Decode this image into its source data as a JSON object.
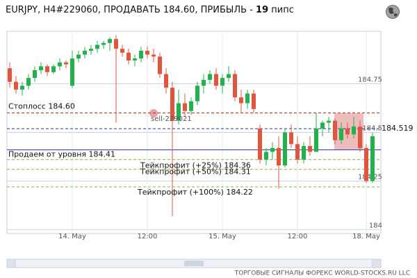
{
  "chart_data": {
    "type": "candlestick",
    "title": "EURJPY, H4#229060, ПРОДАВАТЬ 184.60, ПРИБЫЛЬ -",
    "profit": 19,
    "profit_unit": "пипс",
    "categories": [
      null,
      null,
      null,
      null,
      null,
      null,
      null,
      null,
      null,
      null,
      "14. May",
      null,
      null,
      null,
      null,
      null,
      null,
      null,
      null,
      null,
      null,
      null,
      "12:00",
      null,
      null,
      null,
      null,
      null,
      null,
      null,
      null,
      null,
      null,
      null,
      "15. May",
      null,
      null,
      null,
      null,
      null,
      null,
      null,
      null,
      null,
      null,
      null,
      "12:00",
      null,
      null,
      null,
      null,
      null,
      null,
      null,
      null,
      null,
      null,
      "18. May",
      null
    ],
    "open": [
      184.83,
      184.76,
      184.72,
      184.74,
      184.78,
      184.82,
      184.84,
      184.81,
      184.84,
      184.86,
      184.74,
      184.88,
      184.9,
      184.92,
      184.93,
      184.95,
      184.96,
      184.98,
      184.93,
      184.91,
      184.87,
      184.88,
      184.92,
      184.9,
      184.89,
      184.8,
      184.73,
      184.56,
      184.65,
      184.61,
      184.66,
      184.74,
      184.77,
      184.8,
      184.74,
      184.78,
      184.8,
      184.68,
      184.65,
      184.7,
      184.52,
      184.36,
      184.4,
      184.42,
      184.33,
      184.5,
      184.44,
      184.36,
      184.43,
      184.4,
      184.52,
      184.55,
      184.56,
      184.46,
      184.52,
      184.49,
      184.53,
      184.42,
      184.25
    ],
    "high": [
      184.86,
      184.79,
      184.76,
      184.8,
      184.84,
      184.86,
      184.85,
      184.85,
      184.88,
      184.87,
      184.92,
      184.92,
      184.94,
      184.95,
      184.97,
      184.97,
      184.99,
      185.0,
      184.95,
      184.93,
      184.9,
      184.94,
      184.94,
      184.93,
      184.91,
      184.83,
      184.76,
      184.72,
      184.7,
      184.68,
      184.76,
      184.8,
      184.82,
      184.83,
      184.8,
      184.84,
      184.82,
      184.72,
      184.72,
      184.72,
      184.54,
      184.42,
      184.45,
      184.48,
      184.52,
      184.54,
      184.48,
      184.45,
      184.48,
      184.6,
      184.56,
      184.58,
      184.57,
      184.55,
      184.55,
      184.58,
      184.56,
      184.44,
      184.5
    ],
    "low": [
      184.73,
      184.7,
      184.69,
      184.72,
      184.76,
      184.8,
      184.79,
      184.8,
      184.82,
      184.83,
      184.73,
      184.86,
      184.88,
      184.9,
      184.91,
      184.93,
      184.92,
      184.55,
      184.89,
      184.85,
      184.84,
      184.86,
      184.88,
      184.86,
      184.78,
      184.7,
      184.07,
      184.54,
      184.58,
      184.59,
      184.64,
      184.7,
      184.75,
      184.72,
      184.7,
      184.76,
      184.66,
      184.6,
      184.62,
      184.6,
      184.34,
      184.33,
      184.36,
      184.21,
      184.32,
      184.42,
      184.34,
      184.34,
      184.38,
      184.4,
      184.48,
      184.5,
      184.44,
      184.44,
      184.47,
      184.47,
      184.4,
      184.24,
      184.24
    ],
    "close": [
      184.76,
      184.72,
      184.74,
      184.78,
      184.82,
      184.84,
      184.81,
      184.84,
      184.86,
      184.85,
      184.88,
      184.9,
      184.92,
      184.93,
      184.95,
      184.96,
      184.98,
      184.93,
      184.91,
      184.87,
      184.88,
      184.92,
      184.9,
      184.89,
      184.8,
      184.73,
      184.56,
      184.65,
      184.61,
      184.66,
      184.74,
      184.77,
      184.8,
      184.74,
      184.78,
      184.8,
      184.68,
      184.65,
      184.7,
      184.62,
      184.36,
      184.4,
      184.42,
      184.33,
      184.5,
      184.44,
      184.36,
      184.43,
      184.4,
      184.52,
      184.55,
      184.56,
      184.46,
      184.52,
      184.49,
      184.53,
      184.42,
      184.25,
      184.48
    ],
    "up_color": "#22b14c",
    "down_color": "#e0553f",
    "ylim": [
      183.98,
      185.02
    ],
    "yticks": [
      184.75,
      184.5,
      184.25,
      184
    ],
    "grid": true,
    "levels": [
      {
        "label": "Стоплосс 184.60",
        "value": 184.6,
        "color": "#cc2222",
        "style": "dashed"
      },
      {
        "label": "184.519",
        "value": 184.519,
        "color": "#2233aa",
        "style": "dashed"
      },
      {
        "label": "Продаем от уровня 184.41",
        "value": 184.41,
        "color": "#2233aa",
        "style": "solid"
      },
      {
        "label": "Тейкпрофит (+25%) 184.36",
        "value": 184.36,
        "color": "#88bb44",
        "style": "dashed"
      },
      {
        "label": "Тейкпрофит (+50%) 184.31",
        "value": 184.31,
        "color": "#88bb44",
        "style": "dashed"
      },
      {
        "label": "Тейкпрофит (+100%) 184.22",
        "value": 184.22,
        "color": "#88bb44",
        "style": "dashed"
      }
    ],
    "order_label": "sell-229021",
    "footer": "ТОРГОВЫЕ СИГНАЛЫ ФОРЕКС WORLD-STOCKS.RU LLC"
  }
}
